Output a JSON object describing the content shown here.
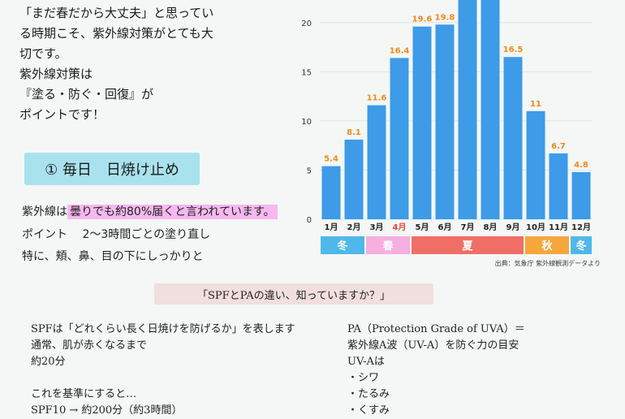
{
  "intro": {
    "text": "「まだ春だから大丈夫」と思ってい\nる時期こそ、紫外線対策がとても大\n切です。\n紫外線対策は\n『塗る・防ぐ・回復』が\nポイントです！"
  },
  "tip": {
    "heading": "① 毎日　日焼け止め",
    "line1_prefix": "紫外線は",
    "line1_highlight": "曇りでも約80%届くと言われています。",
    "line2": "ポイント　 2〜3時間ごとの塗り直し",
    "line3": "特に、頬、鼻、目の下にしっかりと"
  },
  "question": {
    "text": "「SPFとPAの違い、知っていますか？」"
  },
  "spf": {
    "text": "SPFは「どれくらい長く日焼けを防げるか」を表します\n通常、肌が赤くなるまで\n約20分\n\nこれを基準にすると…\nSPF10 → 約200分（約3時間）"
  },
  "pa": {
    "text": "PA（Protection Grade of UVA）＝\n紫外線A波（UV-A）を防ぐ力の目安\nUV-Aは\n・シワ\n・たるみ\n・くすみ"
  },
  "chart_data": {
    "type": "bar",
    "categories": [
      "1月",
      "2月",
      "3月",
      "4月",
      "5月",
      "6月",
      "7月",
      "8月",
      "9月",
      "10月",
      "11月",
      "12月"
    ],
    "values": [
      5.4,
      8.1,
      11.6,
      16.4,
      19.6,
      19.8,
      24.5,
      23.5,
      16.5,
      11,
      6.7,
      4.8
    ],
    "data_labels": [
      "5.4",
      "8.1",
      "11.6",
      "16.4",
      "19.6",
      "19.8",
      "",
      "",
      "16.5",
      "11",
      "6.7",
      "4.8"
    ],
    "yticks": [
      0,
      5,
      10,
      15,
      20
    ],
    "ylim": [
      0,
      22.3
    ],
    "highlight_category": "4月",
    "bar_color": "#3d9be8",
    "label_color": "#f08a1c",
    "highlight_color": "#e8443a",
    "seasons": [
      {
        "label": "冬",
        "start": 0,
        "end": 2,
        "color": "#4fb8ea"
      },
      {
        "label": "春",
        "start": 2,
        "end": 4,
        "color": "#f7aee0"
      },
      {
        "label": "夏",
        "start": 4,
        "end": 9,
        "color": "#ef6f66"
      },
      {
        "label": "秋",
        "start": 9,
        "end": 11,
        "color": "#f5a73c"
      },
      {
        "label": "冬",
        "start": 11,
        "end": 12,
        "color": "#4fb8ea"
      }
    ],
    "source": "出典：気象庁 紫外線観測データより"
  }
}
